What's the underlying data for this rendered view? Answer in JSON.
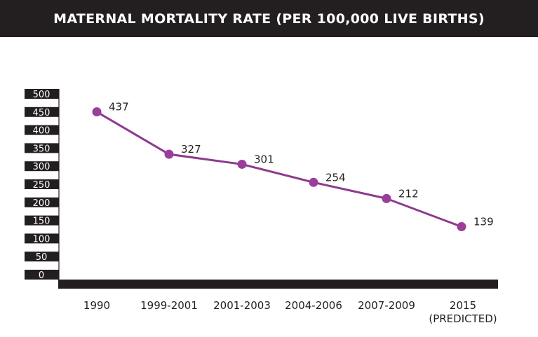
{
  "chart_data": {
    "type": "line",
    "title": "MATERNAL MORTALITY RATE (PER 100,000 LIVE BIRTHS)",
    "xlabel": "",
    "ylabel": "",
    "categories": [
      "1990",
      "1999-2001",
      "2001-2003",
      "2004-2006",
      "2007-2009",
      "2015 (PREDICTED)"
    ],
    "category_lines": [
      [
        "1990"
      ],
      [
        "1999-2001"
      ],
      [
        "2001-2003"
      ],
      [
        "2004-2006"
      ],
      [
        "2007-2009"
      ],
      [
        "2015",
        "(PREDICTED)"
      ]
    ],
    "series": [
      {
        "name": "Maternal mortality rate",
        "values": [
          437,
          327,
          301,
          254,
          212,
          139
        ],
        "color": "#8e3a8e"
      }
    ],
    "data_labels": [
      "437",
      "327",
      "301",
      "254",
      "212",
      "139"
    ],
    "ylim": [
      0,
      500
    ],
    "yticks": [
      0,
      50,
      100,
      150,
      200,
      250,
      300,
      350,
      400,
      450,
      500
    ],
    "ytick_labels": [
      "0",
      "50",
      "100",
      "150",
      "200",
      "250",
      "300",
      "350",
      "400",
      "450",
      "500"
    ],
    "grid": false,
    "legend": "none",
    "colors": {
      "header_bg": "#231f20",
      "tick_bg": "#231f20",
      "axis": "#231f20",
      "line": "#8e3a8e",
      "marker": "#9b3d9b"
    }
  }
}
